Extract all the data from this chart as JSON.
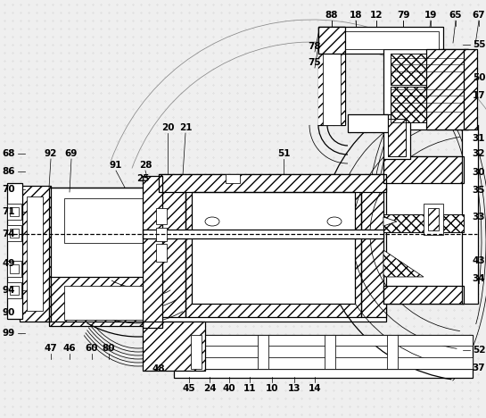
{
  "bg_color": "#efefef",
  "line_color": "#000000",
  "figsize": [
    5.45,
    4.68
  ],
  "dpi": 100,
  "labels_top": [
    [
      "88",
      372,
      17
    ],
    [
      "18",
      399,
      17
    ],
    [
      "12",
      422,
      17
    ],
    [
      "79",
      452,
      17
    ],
    [
      "19",
      483,
      17
    ],
    [
      "65",
      511,
      17
    ],
    [
      "67",
      537,
      17
    ]
  ],
  "labels_right": [
    [
      "55",
      537,
      50
    ],
    [
      "50",
      537,
      87
    ],
    [
      "17",
      537,
      107
    ],
    [
      "31",
      537,
      155
    ],
    [
      "32",
      537,
      172
    ],
    [
      "30",
      537,
      193
    ],
    [
      "35",
      537,
      213
    ],
    [
      "33",
      537,
      243
    ],
    [
      "43",
      537,
      292
    ],
    [
      "34",
      537,
      312
    ],
    [
      "52",
      537,
      392
    ],
    [
      "37",
      537,
      412
    ]
  ],
  "labels_left": [
    [
      "68",
      10,
      172
    ],
    [
      "86",
      10,
      192
    ],
    [
      "70",
      10,
      212
    ],
    [
      "71",
      10,
      237
    ],
    [
      "74",
      10,
      262
    ],
    [
      "49",
      10,
      295
    ],
    [
      "94",
      10,
      325
    ],
    [
      "90",
      10,
      350
    ],
    [
      "99",
      10,
      373
    ]
  ],
  "labels_botleft": [
    [
      "47",
      57,
      390
    ],
    [
      "46",
      78,
      390
    ],
    [
      "60",
      103,
      390
    ],
    [
      "80",
      122,
      390
    ]
  ],
  "labels_bottom": [
    [
      "48",
      178,
      413
    ],
    [
      "45",
      212,
      435
    ],
    [
      "24",
      235,
      435
    ],
    [
      "40",
      257,
      435
    ],
    [
      "11",
      280,
      435
    ],
    [
      "10",
      305,
      435
    ],
    [
      "13",
      330,
      435
    ],
    [
      "14",
      353,
      435
    ]
  ],
  "labels_mid": [
    [
      "92",
      57,
      172
    ],
    [
      "69",
      80,
      172
    ],
    [
      "91",
      130,
      185
    ],
    [
      "28",
      163,
      185
    ],
    [
      "25",
      160,
      200
    ],
    [
      "20",
      188,
      143
    ],
    [
      "21",
      208,
      143
    ],
    [
      "51",
      318,
      172
    ],
    [
      "78",
      353,
      52
    ],
    [
      "75",
      353,
      70
    ]
  ]
}
